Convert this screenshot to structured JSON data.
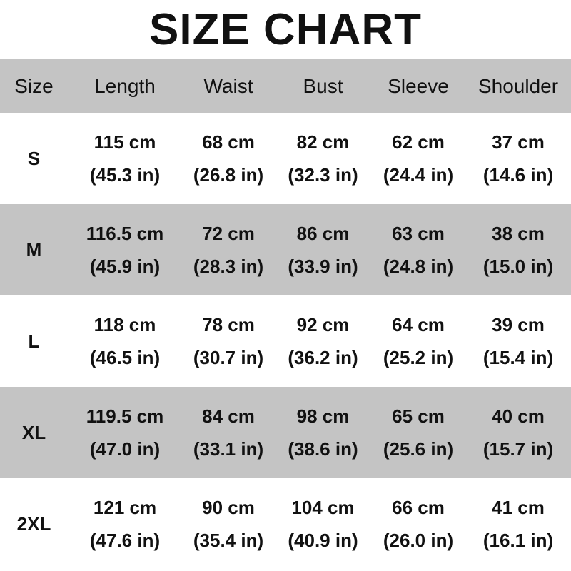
{
  "title": "SIZE CHART",
  "headers": [
    "Size",
    "Length",
    "Waist",
    "Bust",
    "Sleeve",
    "Shoulder"
  ],
  "colors": {
    "header_bg": "#c4c4c4",
    "alt_row_bg": "#c4c4c4",
    "row_bg": "#ffffff",
    "text": "#111111"
  },
  "rows": [
    {
      "size": "S",
      "cells": [
        [
          "115 cm",
          "(45.3 in)"
        ],
        [
          "68 cm",
          "(26.8 in)"
        ],
        [
          "82 cm",
          "(32.3 in)"
        ],
        [
          "62 cm",
          "(24.4 in)"
        ],
        [
          "37 cm",
          "(14.6 in)"
        ]
      ]
    },
    {
      "size": "M",
      "cells": [
        [
          "116.5 cm",
          "(45.9 in)"
        ],
        [
          "72 cm",
          "(28.3 in)"
        ],
        [
          "86 cm",
          "(33.9 in)"
        ],
        [
          "63 cm",
          "(24.8 in)"
        ],
        [
          "38 cm",
          "(15.0 in)"
        ]
      ]
    },
    {
      "size": "L",
      "cells": [
        [
          "118 cm",
          "(46.5 in)"
        ],
        [
          "78 cm",
          "(30.7 in)"
        ],
        [
          "92 cm",
          "(36.2 in)"
        ],
        [
          "64 cm",
          "(25.2 in)"
        ],
        [
          "39 cm",
          "(15.4 in)"
        ]
      ]
    },
    {
      "size": "XL",
      "cells": [
        [
          "119.5 cm",
          "(47.0 in)"
        ],
        [
          "84 cm",
          "(33.1 in)"
        ],
        [
          "98 cm",
          "(38.6 in)"
        ],
        [
          "65 cm",
          "(25.6 in)"
        ],
        [
          "40 cm",
          "(15.7 in)"
        ]
      ]
    },
    {
      "size": "2XL",
      "cells": [
        [
          "121 cm",
          "(47.6 in)"
        ],
        [
          "90 cm",
          "(35.4 in)"
        ],
        [
          "104 cm",
          "(40.9 in)"
        ],
        [
          "66 cm",
          "(26.0 in)"
        ],
        [
          "41 cm",
          "(16.1 in)"
        ]
      ]
    }
  ]
}
